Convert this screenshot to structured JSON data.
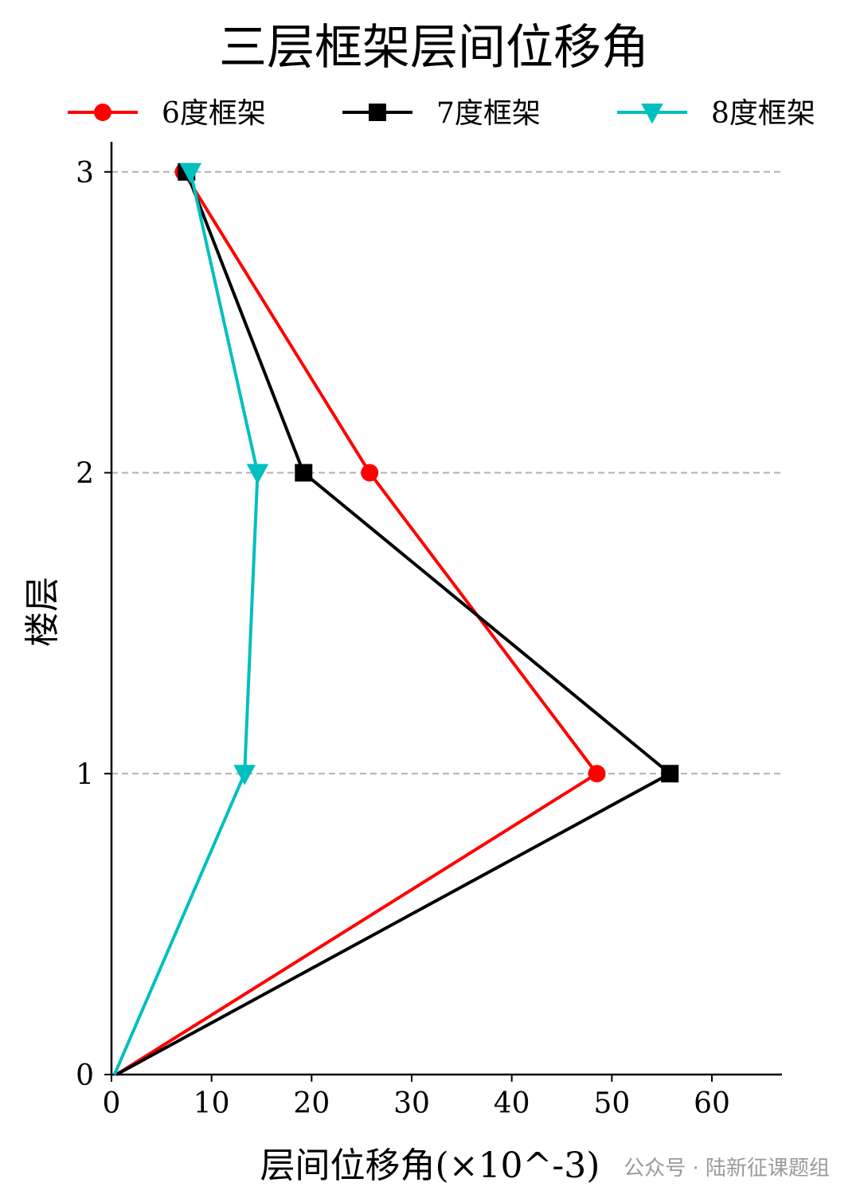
{
  "chart_data": {
    "type": "line",
    "title": "三层框架层间位移角",
    "xlabel": "层间位移角(×10^-3)",
    "ylabel": "楼层",
    "xlim": [
      0,
      67
    ],
    "ylim": [
      0,
      3.1
    ],
    "xticks": [
      0,
      10,
      20,
      30,
      40,
      50,
      60
    ],
    "yticks": [
      0,
      1,
      2,
      3
    ],
    "grid": "horizontal-dashed",
    "legend_position": "top",
    "series": [
      {
        "name": "6度框架",
        "color": "#ff0000",
        "marker": "circle",
        "x": [
          0.5,
          48.5,
          25.8,
          7.2
        ],
        "y": [
          0,
          1,
          2,
          3
        ]
      },
      {
        "name": "7度框架",
        "color": "#000000",
        "marker": "square",
        "x": [
          0.5,
          55.8,
          19.2,
          7.5
        ],
        "y": [
          0,
          1,
          2,
          3
        ]
      },
      {
        "name": "8度框架",
        "color": "#00bfbf",
        "marker": "triangle-down",
        "x": [
          0.3,
          13.3,
          14.6,
          7.9
        ],
        "y": [
          0,
          1,
          2,
          3
        ]
      }
    ]
  },
  "watermark": "公众号 · 陆新征课题组"
}
